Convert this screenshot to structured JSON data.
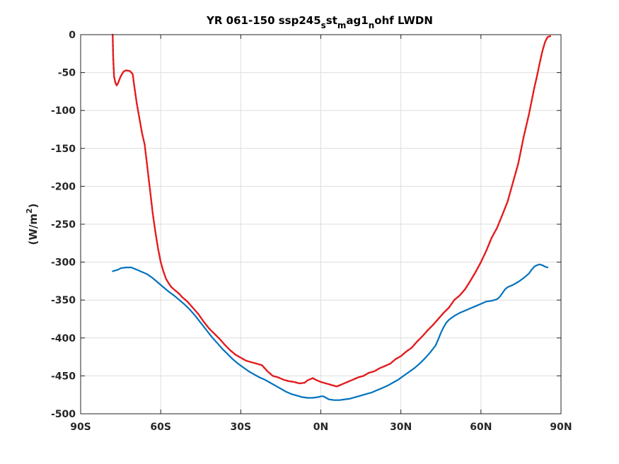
{
  "chart_data": {
    "type": "line",
    "title": "YR 061-150 ssp245_st_mag1_nohf LWDN",
    "title_parts": {
      "a": "YR 061-150 ssp245",
      "s1": "s",
      "b": "st",
      "s2": "m",
      "c": "ag1",
      "s3": "n",
      "d": "ohf LWDN"
    },
    "ylabel": {
      "prefix": "(W/m",
      "sup": "2",
      "suffix": ")"
    },
    "xlabel": "",
    "xlim": [
      -90,
      90
    ],
    "ylim": [
      -500,
      0
    ],
    "grid": true,
    "x_ticks": [
      {
        "value": -90,
        "label": "90S"
      },
      {
        "value": -60,
        "label": "60S"
      },
      {
        "value": -30,
        "label": "30S"
      },
      {
        "value": 0,
        "label": "0N"
      },
      {
        "value": 30,
        "label": "30N"
      },
      {
        "value": 60,
        "label": "60N"
      },
      {
        "value": 90,
        "label": "90N"
      }
    ],
    "y_ticks": [
      {
        "value": 0,
        "label": "0"
      },
      {
        "value": -50,
        "label": "-50"
      },
      {
        "value": -100,
        "label": "-100"
      },
      {
        "value": -150,
        "label": "-150"
      },
      {
        "value": -200,
        "label": "-200"
      },
      {
        "value": -250,
        "label": "-250"
      },
      {
        "value": -300,
        "label": "-300"
      },
      {
        "value": -350,
        "label": "-350"
      },
      {
        "value": -400,
        "label": "-400"
      },
      {
        "value": -450,
        "label": "-450"
      },
      {
        "value": -500,
        "label": "-500"
      }
    ],
    "series": [
      {
        "color": "#e31a1c",
        "style": "dashed",
        "points": [
          [
            -78,
            0
          ],
          [
            -77.8,
            -30
          ],
          [
            -77.5,
            -55
          ],
          [
            -77,
            -63
          ],
          [
            -76.5,
            -67
          ],
          [
            -76,
            -64
          ],
          [
            -75,
            -55
          ],
          [
            -74,
            -49
          ],
          [
            -73,
            -47
          ],
          [
            -71.5,
            -48
          ],
          [
            -70.5,
            -52
          ],
          [
            -70,
            -65
          ],
          [
            -69,
            -90
          ],
          [
            -68,
            -110
          ],
          [
            -67,
            -130
          ],
          [
            -66,
            -145
          ],
          [
            -65,
            -175
          ],
          [
            -64,
            -205
          ],
          [
            -63,
            -235
          ],
          [
            -62,
            -260
          ],
          [
            -61,
            -282
          ],
          [
            -60,
            -300
          ],
          [
            -59,
            -312
          ],
          [
            -58,
            -322
          ],
          [
            -57,
            -328
          ],
          [
            -56,
            -333
          ],
          [
            -55,
            -336
          ],
          [
            -54,
            -339
          ],
          [
            -53,
            -342
          ],
          [
            -52,
            -346
          ],
          [
            -50,
            -352
          ],
          [
            -48,
            -360
          ],
          [
            -46,
            -368
          ],
          [
            -44,
            -378
          ],
          [
            -42,
            -387
          ],
          [
            -40,
            -394
          ],
          [
            -38,
            -401
          ],
          [
            -36,
            -409
          ],
          [
            -34,
            -416
          ],
          [
            -32,
            -422
          ],
          [
            -30,
            -426
          ],
          [
            -28,
            -430
          ],
          [
            -26,
            -432
          ],
          [
            -24,
            -434
          ],
          [
            -22,
            -436
          ],
          [
            -20,
            -444
          ],
          [
            -18,
            -450
          ],
          [
            -16,
            -452
          ],
          [
            -14,
            -455
          ],
          [
            -12,
            -457
          ],
          [
            -10,
            -458
          ],
          [
            -8,
            -460
          ],
          [
            -6,
            -459
          ],
          [
            -5,
            -456
          ],
          [
            -3,
            -453
          ],
          [
            -2,
            -455
          ],
          [
            0,
            -458
          ],
          [
            2,
            -460
          ],
          [
            4,
            -462
          ],
          [
            6,
            -464
          ],
          [
            8,
            -461
          ],
          [
            10,
            -458
          ],
          [
            12,
            -455
          ],
          [
            14,
            -452
          ],
          [
            16,
            -450
          ],
          [
            18,
            -446
          ],
          [
            20,
            -444
          ],
          [
            22,
            -440
          ],
          [
            24,
            -437
          ],
          [
            26,
            -434
          ],
          [
            28,
            -428
          ],
          [
            30,
            -424
          ],
          [
            32,
            -418
          ],
          [
            34,
            -413
          ],
          [
            36,
            -405
          ],
          [
            38,
            -398
          ],
          [
            40,
            -390
          ],
          [
            42,
            -383
          ],
          [
            44,
            -375
          ],
          [
            46,
            -367
          ],
          [
            48,
            -360
          ],
          [
            50,
            -350
          ],
          [
            52,
            -344
          ],
          [
            54,
            -336
          ],
          [
            56,
            -325
          ],
          [
            58,
            -313
          ],
          [
            60,
            -300
          ],
          [
            62,
            -285
          ],
          [
            64,
            -268
          ],
          [
            66,
            -255
          ],
          [
            68,
            -238
          ],
          [
            70,
            -220
          ],
          [
            72,
            -195
          ],
          [
            74,
            -170
          ],
          [
            76,
            -135
          ],
          [
            78,
            -105
          ],
          [
            80,
            -70
          ],
          [
            81,
            -55
          ],
          [
            82,
            -38
          ],
          [
            83,
            -22
          ],
          [
            84,
            -10
          ],
          [
            85,
            -3
          ],
          [
            86,
            -2
          ]
        ]
      },
      {
        "color": "#0072bd",
        "style": "solid",
        "points": [
          [
            -78,
            -312
          ],
          [
            -76,
            -310
          ],
          [
            -75,
            -308
          ],
          [
            -73,
            -307
          ],
          [
            -71,
            -307
          ],
          [
            -69,
            -310
          ],
          [
            -67,
            -313
          ],
          [
            -65,
            -316
          ],
          [
            -63,
            -321
          ],
          [
            -61,
            -327
          ],
          [
            -59,
            -333
          ],
          [
            -57,
            -339
          ],
          [
            -55,
            -344
          ],
          [
            -53,
            -350
          ],
          [
            -51,
            -356
          ],
          [
            -49,
            -363
          ],
          [
            -47,
            -371
          ],
          [
            -45,
            -380
          ],
          [
            -43,
            -389
          ],
          [
            -41,
            -398
          ],
          [
            -39,
            -406
          ],
          [
            -37,
            -414
          ],
          [
            -35,
            -421
          ],
          [
            -33,
            -428
          ],
          [
            -31,
            -434
          ],
          [
            -29,
            -439
          ],
          [
            -27,
            -444
          ],
          [
            -25,
            -448
          ],
          [
            -23,
            -452
          ],
          [
            -21,
            -455
          ],
          [
            -19,
            -459
          ],
          [
            -17,
            -463
          ],
          [
            -15,
            -467
          ],
          [
            -13,
            -471
          ],
          [
            -11,
            -474
          ],
          [
            -9,
            -476
          ],
          [
            -7,
            -478
          ],
          [
            -5,
            -479
          ],
          [
            -3,
            -479
          ],
          [
            -1,
            -478
          ],
          [
            0,
            -477
          ],
          [
            1,
            -477
          ],
          [
            2,
            -479
          ],
          [
            3,
            -481
          ],
          [
            5,
            -482
          ],
          [
            7,
            -482
          ],
          [
            9,
            -481
          ],
          [
            11,
            -480
          ],
          [
            13,
            -478
          ],
          [
            15,
            -476
          ],
          [
            17,
            -474
          ],
          [
            19,
            -472
          ],
          [
            21,
            -469
          ],
          [
            23,
            -466
          ],
          [
            25,
            -463
          ],
          [
            27,
            -459
          ],
          [
            29,
            -455
          ],
          [
            31,
            -450
          ],
          [
            33,
            -445
          ],
          [
            35,
            -440
          ],
          [
            37,
            -434
          ],
          [
            39,
            -427
          ],
          [
            41,
            -419
          ],
          [
            43,
            -410
          ],
          [
            44,
            -402
          ],
          [
            45,
            -393
          ],
          [
            46,
            -386
          ],
          [
            47,
            -380
          ],
          [
            48,
            -376
          ],
          [
            50,
            -371
          ],
          [
            52,
            -367
          ],
          [
            54,
            -364
          ],
          [
            56,
            -361
          ],
          [
            58,
            -358
          ],
          [
            60,
            -355
          ],
          [
            62,
            -352
          ],
          [
            64,
            -351
          ],
          [
            66,
            -349
          ],
          [
            67,
            -346
          ],
          [
            68,
            -341
          ],
          [
            69,
            -336
          ],
          [
            70,
            -333
          ],
          [
            72,
            -330
          ],
          [
            74,
            -326
          ],
          [
            76,
            -321
          ],
          [
            78,
            -315
          ],
          [
            79,
            -310
          ],
          [
            80,
            -306
          ],
          [
            81,
            -304
          ],
          [
            82,
            -303
          ],
          [
            83,
            -304
          ],
          [
            84,
            -306
          ],
          [
            85,
            -307
          ]
        ]
      }
    ]
  }
}
